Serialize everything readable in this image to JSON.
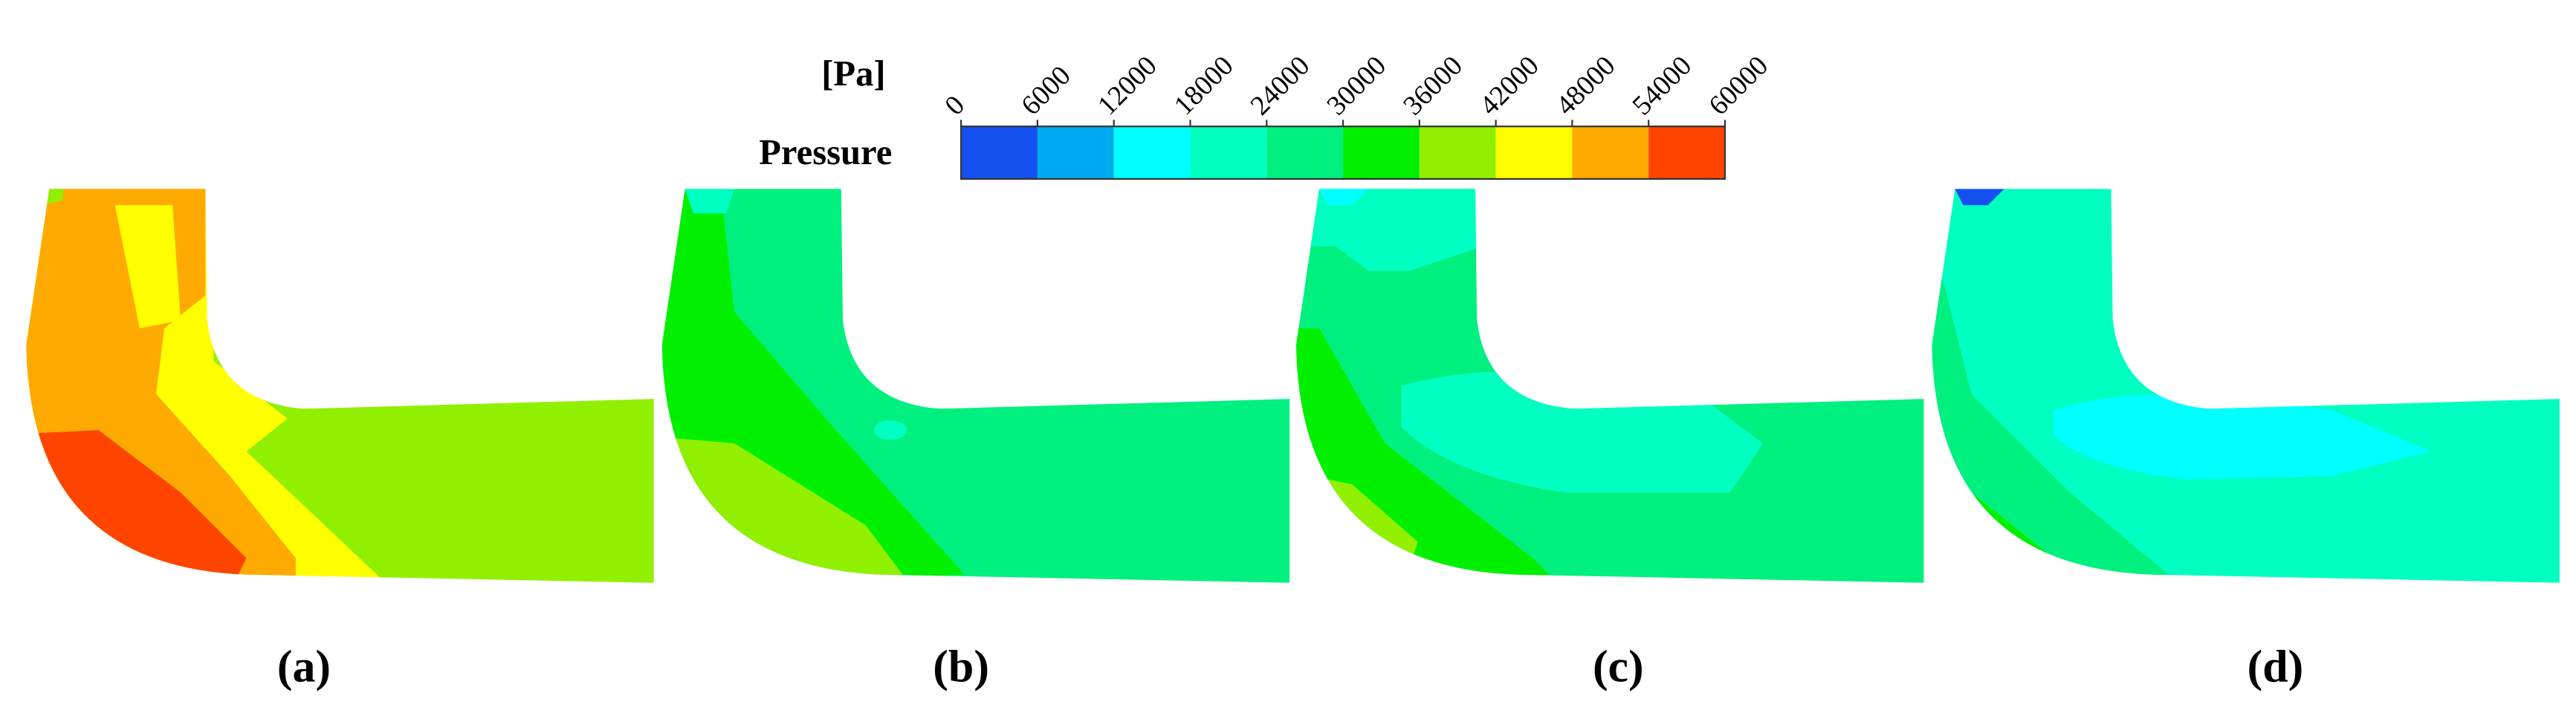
{
  "colorbar": {
    "title": "Pressure",
    "unit": "[Pa]",
    "ticks": [
      0,
      6000,
      12000,
      18000,
      24000,
      30000,
      36000,
      42000,
      48000,
      54000,
      60000
    ],
    "colors": [
      "#1450f0",
      "#00aaf0",
      "#00ffff",
      "#00ffc0",
      "#00f080",
      "#00f000",
      "#90f000",
      "#ffff00",
      "#ffaa00",
      "#ff4400"
    ]
  },
  "panels": [
    {
      "label": "(a)"
    },
    {
      "label": "(b)"
    },
    {
      "label": "(c)"
    },
    {
      "label": "(d)"
    }
  ]
}
